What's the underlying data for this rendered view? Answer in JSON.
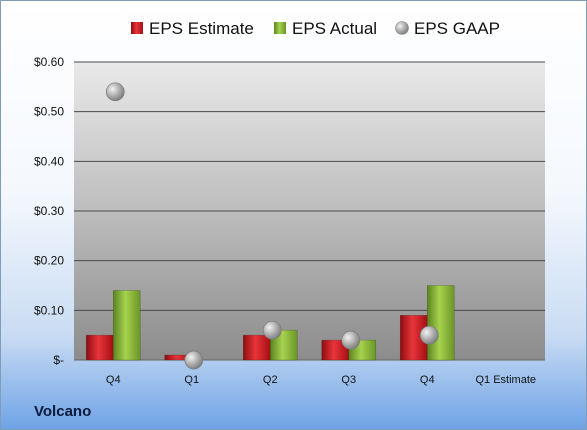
{
  "company": "Volcano",
  "colors": {
    "estimate": "#c0141b",
    "actual": "#7aa82c",
    "gaap": "#a6a6a6"
  },
  "chart_data": {
    "type": "bar",
    "categories": [
      "Q4",
      "Q1",
      "Q2",
      "Q3",
      "Q4",
      "Q1 Estimate"
    ],
    "series": [
      {
        "name": "EPS Estimate",
        "kind": "bar",
        "values": [
          0.05,
          0.01,
          0.05,
          0.04,
          0.09,
          null
        ]
      },
      {
        "name": "EPS Actual",
        "kind": "bar",
        "values": [
          0.14,
          null,
          0.06,
          0.04,
          0.15,
          null
        ]
      },
      {
        "name": "EPS GAAP",
        "kind": "scatter",
        "values": [
          0.54,
          0.0,
          0.06,
          0.04,
          0.05,
          null
        ]
      }
    ],
    "ylim": [
      0,
      0.6
    ],
    "yticks": [
      0,
      0.1,
      0.2,
      0.3,
      0.4,
      0.5,
      0.6
    ],
    "ytick_labels": [
      "$-",
      "$0.10",
      "$0.20",
      "$0.30",
      "$0.40",
      "$0.50",
      "$0.60"
    ],
    "legend": "top",
    "grid": true
  }
}
